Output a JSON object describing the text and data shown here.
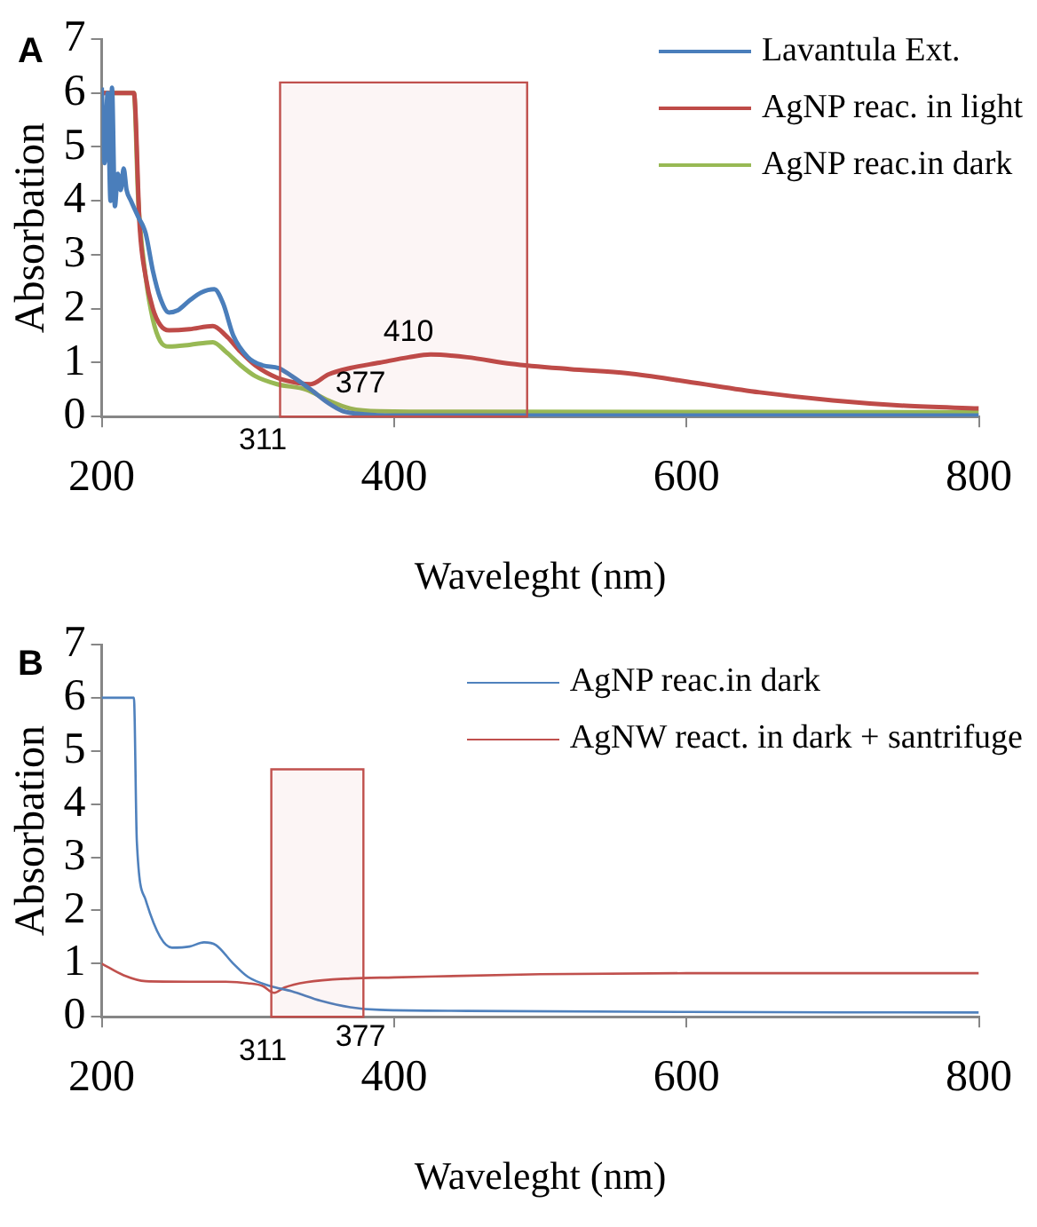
{
  "chart_data": [
    {
      "type": "line",
      "title": "A",
      "xlabel": "Waveleght (nm)",
      "ylabel": "Absorbation",
      "xlim": [
        200,
        800
      ],
      "ylim": [
        0,
        7
      ],
      "xticks": [
        200,
        400,
        600,
        800
      ],
      "yticks": [
        0,
        1,
        2,
        3,
        4,
        5,
        6,
        7
      ],
      "legend": "top right",
      "marker": "none",
      "series": [
        {
          "name": "Lavantula Ext.",
          "color": "#4a7ebb",
          "x": [
            200,
            202,
            204,
            206,
            207,
            209,
            211,
            213,
            215,
            217,
            220,
            225,
            230,
            235,
            240,
            246,
            252,
            260,
            268,
            277,
            283,
            290,
            300,
            310,
            321,
            330,
            343,
            355,
            365,
            380,
            400,
            500,
            800
          ],
          "values": [
            6.1,
            4.7,
            6.0,
            4.0,
            6.1,
            3.9,
            4.5,
            4.2,
            4.6,
            4.2,
            4.0,
            3.7,
            3.4,
            2.7,
            2.2,
            1.93,
            1.97,
            2.15,
            2.3,
            2.36,
            2.1,
            1.5,
            1.1,
            0.95,
            0.9,
            0.75,
            0.5,
            0.25,
            0.1,
            0.04,
            0.02,
            0.02,
            0.02
          ]
        },
        {
          "name": "AgNP reac. in light",
          "color": "#be4b48",
          "x": [
            200,
            222,
            226,
            230,
            235,
            240,
            246,
            260,
            276,
            285,
            295,
            305,
            320,
            335,
            343,
            355,
            370,
            390,
            410,
            425,
            450,
            480,
            520,
            560,
            600,
            650,
            700,
            750,
            800
          ],
          "values": [
            6.0,
            6.0,
            3.5,
            2.6,
            2.0,
            1.7,
            1.6,
            1.62,
            1.68,
            1.5,
            1.2,
            0.95,
            0.72,
            0.62,
            0.6,
            0.78,
            0.9,
            1.0,
            1.1,
            1.15,
            1.1,
            0.98,
            0.88,
            0.8,
            0.65,
            0.45,
            0.3,
            0.2,
            0.15
          ]
        },
        {
          "name": "AgNP reac.in dark",
          "color": "#98b954",
          "x": [
            200,
            222,
            225,
            230,
            235,
            240,
            246,
            260,
            276,
            285,
            295,
            305,
            320,
            340,
            355,
            370,
            390,
            450,
            800
          ],
          "values": [
            6.0,
            6.0,
            4.0,
            2.6,
            1.8,
            1.4,
            1.3,
            1.33,
            1.38,
            1.2,
            0.95,
            0.75,
            0.6,
            0.5,
            0.3,
            0.15,
            0.1,
            0.09,
            0.08
          ]
        }
      ],
      "bands": [
        {
          "axis": "x",
          "from": 322,
          "to": 491,
          "color": "#c0504d"
        }
      ],
      "annotations": [
        "311",
        "377",
        "410"
      ]
    },
    {
      "type": "line",
      "title": "B",
      "xlabel": "Waveleght (nm)",
      "ylabel": "Absorbation",
      "xlim": [
        200,
        800
      ],
      "ylim": [
        0,
        7
      ],
      "xticks": [
        200,
        400,
        600,
        800
      ],
      "yticks": [
        0,
        1,
        2,
        3,
        4,
        5,
        6,
        7
      ],
      "legend": "top right",
      "marker": "none",
      "series": [
        {
          "name": "AgNP reac.in dark",
          "color": "#4f81bd",
          "x": [
            200,
            222,
            224,
            230,
            240,
            248,
            260,
            270,
            278,
            290,
            300,
            315,
            330,
            350,
            370,
            390,
            450,
            600,
            800
          ],
          "values": [
            6.0,
            6.0,
            3.3,
            2.2,
            1.5,
            1.3,
            1.32,
            1.4,
            1.35,
            1.0,
            0.75,
            0.58,
            0.48,
            0.3,
            0.18,
            0.13,
            0.11,
            0.09,
            0.08
          ]
        },
        {
          "name": "AgNW react. in dark + santrifuge",
          "color": "#c0504d",
          "x": [
            200,
            215,
            230,
            260,
            280,
            300,
            310,
            318,
            325,
            340,
            370,
            400,
            500,
            600,
            800
          ],
          "values": [
            1.0,
            0.78,
            0.67,
            0.66,
            0.66,
            0.63,
            0.58,
            0.45,
            0.55,
            0.65,
            0.72,
            0.74,
            0.8,
            0.82,
            0.82
          ]
        }
      ],
      "bands": [
        {
          "axis": "x",
          "from": 316,
          "to": 379,
          "color": "#c0504d"
        }
      ],
      "annotations": [
        "311",
        "377"
      ]
    }
  ]
}
